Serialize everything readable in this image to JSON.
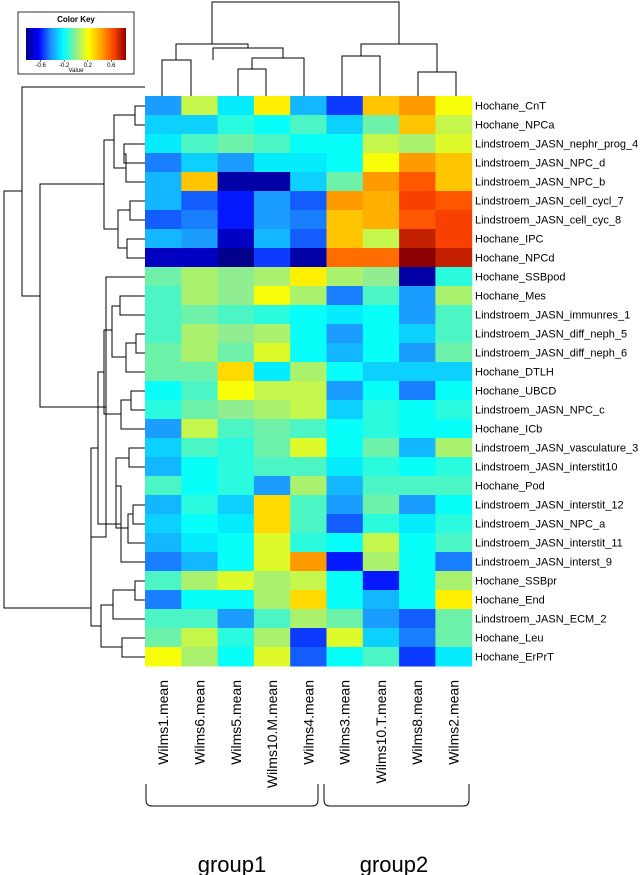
{
  "chart_data": {
    "type": "heatmap",
    "title": "",
    "color_key": {
      "title": "Color Key",
      "xlabel": "Value",
      "ticks": [
        "-0.6",
        "-0.2",
        "0.2",
        "0.6"
      ],
      "tick_values": [
        -0.6,
        -0.2,
        0.2,
        0.6
      ],
      "range": [
        -0.85,
        0.85
      ],
      "colors": [
        "#00008B",
        "#0000FF",
        "#1E90FF",
        "#00FFFF",
        "#90EE90",
        "#FFFF00",
        "#FFA500",
        "#FF4500",
        "#8B0000"
      ]
    },
    "columns": [
      "Wilms1.mean",
      "Wilms6.mean",
      "Wilms5.mean",
      "Wilms10.M.mean",
      "Wilms4.mean",
      "Wilms3.mean",
      "Wilms10.T.mean",
      "Wilms8.mean",
      "Wilms2.mean"
    ],
    "rows": [
      "Hochane_CnT",
      "Hochane_NPCa",
      "Lindstroem_JASN_nephr_prog_4",
      "Lindstroem_JASN_NPC_d",
      "Lindstroem_JASN_NPC_b",
      "Lindstroem_JASN_cell_cycl_7",
      "Lindstroem_JASN_cell_cyc_8",
      "Hochane_IPC",
      "Hochane_NPCd",
      "Hochane_SSBpod",
      "Hochane_Mes",
      "Lindstroem_JASN_immunres_1",
      "Lindstroem_JASN_diff_neph_5",
      "Lindstroem_JASN_diff_neph_6",
      "Hochane_DTLH",
      "Hochane_UBCD",
      "Lindstroem_JASN_NPC_c",
      "Hochane_ICb",
      "Lindstroem_JASN_vasculature_3",
      "Lindstroem_JASN_interstit10",
      "Hochane_Pod",
      "Lindstroem_JASN_interstit_12",
      "Lindstroem_JASN_NPC_a",
      "Lindstroem_JASN_interstit_11",
      "Lindstroem_JASN_interst_9",
      "Hochane_SSBpr",
      "Hochane_End",
      "Lindstroem_JASN_ECM_2",
      "Hochane_Leu",
      "Hochane_ErPrT"
    ],
    "values": [
      [
        -0.4,
        0.1,
        -0.25,
        0.25,
        -0.35,
        -0.55,
        0.35,
        0.45,
        0.2
      ],
      [
        -0.3,
        -0.3,
        -0.15,
        -0.2,
        -0.1,
        -0.3,
        -0.05,
        0.35,
        0.1
      ],
      [
        -0.25,
        -0.1,
        -0.05,
        -0.1,
        -0.2,
        -0.2,
        0.1,
        0.05,
        0.15
      ],
      [
        -0.45,
        -0.3,
        -0.4,
        -0.25,
        -0.25,
        -0.2,
        0.2,
        0.45,
        0.35
      ],
      [
        -0.35,
        0.35,
        -0.8,
        -0.8,
        -0.3,
        -0.05,
        0.45,
        0.6,
        0.35
      ],
      [
        -0.35,
        -0.5,
        -0.6,
        -0.4,
        -0.5,
        0.45,
        0.4,
        0.65,
        0.6
      ],
      [
        -0.5,
        -0.45,
        -0.6,
        -0.4,
        -0.45,
        0.35,
        0.4,
        0.6,
        0.65
      ],
      [
        -0.35,
        -0.4,
        -0.75,
        -0.35,
        -0.5,
        0.35,
        0.1,
        0.75,
        0.65
      ],
      [
        -0.75,
        -0.75,
        -0.85,
        -0.55,
        -0.8,
        0.55,
        0.55,
        0.85,
        0.75
      ],
      [
        -0.05,
        0.05,
        0.0,
        0.05,
        0.25,
        0.05,
        0.0,
        -0.8,
        -0.15
      ],
      [
        -0.1,
        0.05,
        0.0,
        0.2,
        0.05,
        -0.45,
        -0.1,
        -0.4,
        0.05
      ],
      [
        -0.1,
        -0.05,
        -0.1,
        -0.15,
        -0.2,
        -0.25,
        -0.2,
        -0.4,
        -0.1
      ],
      [
        -0.1,
        0.05,
        0.0,
        0.05,
        -0.2,
        -0.4,
        -0.2,
        -0.3,
        -0.1
      ],
      [
        -0.05,
        0.05,
        -0.05,
        0.15,
        -0.2,
        -0.35,
        -0.2,
        -0.4,
        -0.05
      ],
      [
        -0.05,
        -0.05,
        0.3,
        -0.25,
        0.05,
        -0.2,
        -0.3,
        -0.3,
        -0.3
      ],
      [
        -0.2,
        -0.1,
        0.2,
        0.1,
        0.1,
        -0.4,
        -0.2,
        -0.45,
        -0.2
      ],
      [
        -0.15,
        -0.05,
        0.0,
        0.05,
        0.1,
        -0.3,
        -0.15,
        -0.2,
        -0.15
      ],
      [
        -0.4,
        0.1,
        -0.1,
        -0.05,
        -0.1,
        -0.2,
        -0.15,
        -0.2,
        -0.2
      ],
      [
        -0.3,
        -0.1,
        -0.15,
        -0.05,
        0.15,
        -0.2,
        -0.05,
        -0.35,
        0.05
      ],
      [
        -0.35,
        -0.2,
        -0.15,
        -0.1,
        -0.1,
        -0.25,
        -0.15,
        -0.2,
        -0.15
      ],
      [
        -0.1,
        -0.2,
        -0.15,
        -0.4,
        0.05,
        -0.35,
        -0.1,
        -0.1,
        -0.1
      ],
      [
        -0.35,
        -0.15,
        -0.3,
        0.3,
        -0.1,
        -0.4,
        -0.05,
        -0.4,
        -0.2
      ],
      [
        -0.3,
        -0.2,
        -0.25,
        0.3,
        -0.1,
        -0.5,
        -0.15,
        -0.25,
        -0.15
      ],
      [
        -0.35,
        -0.25,
        -0.2,
        0.15,
        -0.15,
        -0.2,
        0.1,
        -0.2,
        -0.1
      ],
      [
        -0.45,
        -0.35,
        -0.2,
        0.15,
        0.45,
        -0.6,
        0.05,
        -0.2,
        -0.45
      ],
      [
        -0.1,
        0.05,
        0.15,
        0.05,
        0.1,
        -0.2,
        -0.6,
        -0.2,
        0.05
      ],
      [
        -0.45,
        -0.2,
        -0.2,
        0.05,
        0.3,
        -0.2,
        -0.35,
        -0.2,
        0.25
      ],
      [
        -0.1,
        -0.1,
        -0.4,
        -0.1,
        0.05,
        -0.05,
        -0.4,
        -0.5,
        -0.05
      ],
      [
        -0.05,
        0.1,
        -0.15,
        0.05,
        -0.55,
        0.15,
        -0.3,
        -0.45,
        -0.05
      ],
      [
        0.2,
        0.05,
        -0.2,
        0.15,
        -0.5,
        -0.2,
        -0.1,
        -0.55,
        -0.25
      ]
    ],
    "groups": [
      {
        "label": "group1",
        "columns": [
          "Wilms1.mean",
          "Wilms6.mean",
          "Wilms5.mean",
          "Wilms10.M.mean",
          "Wilms4.mean"
        ]
      },
      {
        "label": "group2",
        "columns": [
          "Wilms3.mean",
          "Wilms10.T.mean",
          "Wilms8.mean",
          "Wilms2.mean"
        ]
      }
    ]
  }
}
